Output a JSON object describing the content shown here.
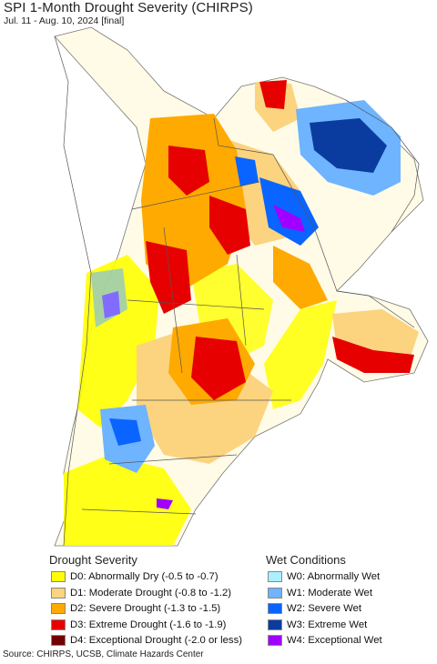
{
  "title": "SPI 1-Month Drought Severity (CHIRPS)",
  "subtitle": "Jul. 11 - Aug. 10, 2024 [final]",
  "legend": {
    "drought": {
      "title": "Drought Severity",
      "items": [
        {
          "label": "D0: Abnormally Dry (-0.5 to -0.7)",
          "color": "#ffff00"
        },
        {
          "label": "D1: Moderate Drought (-0.8 to -1.2)",
          "color": "#fcd37f"
        },
        {
          "label": "D2: Severe Drought (-1.3 to -1.5)",
          "color": "#ffaa00"
        },
        {
          "label": "D3: Extreme Drought (-1.6 to -1.9)",
          "color": "#e60000"
        },
        {
          "label": "D4: Exceptional Drought (-2.0 or less)",
          "color": "#730000"
        }
      ]
    },
    "wet": {
      "title": "Wet Conditions",
      "items": [
        {
          "label": "W0: Abnormally Wet",
          "color": "#aaf0ff"
        },
        {
          "label": "W1: Moderate Wet",
          "color": "#6eb4ff"
        },
        {
          "label": "W2: Severe Wet",
          "color": "#0a64ff"
        },
        {
          "label": "W3: Extreme Wet",
          "color": "#0a3ca0"
        },
        {
          "label": "W4: Exceptional Wet",
          "color": "#a000ff"
        }
      ]
    }
  },
  "source": "Source: CHIRPS, UCSB, Climate Hazards Center"
}
